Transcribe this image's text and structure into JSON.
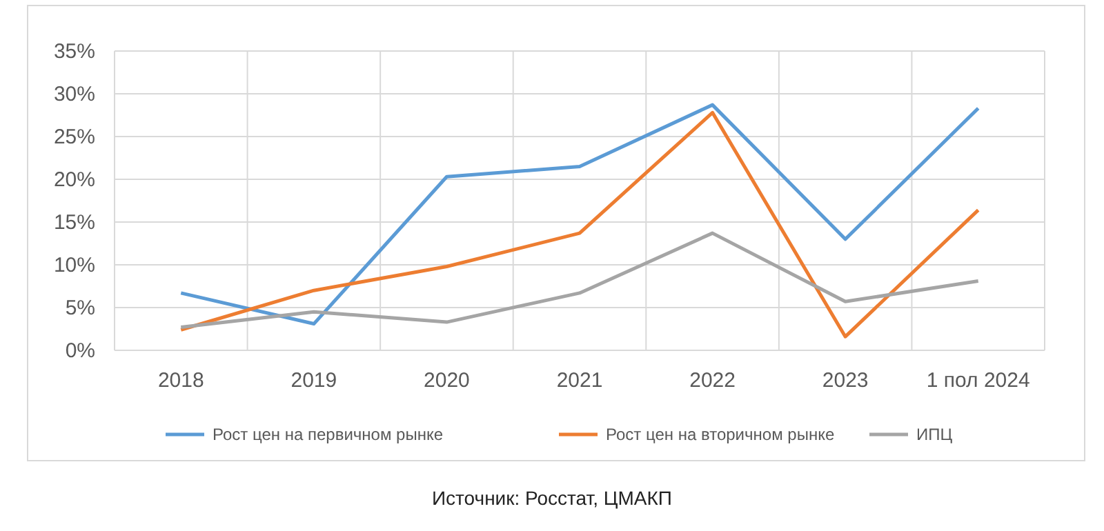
{
  "chart_data": {
    "type": "line",
    "categories": [
      "2018",
      "2019",
      "2020",
      "2021",
      "2022",
      "2023",
      "1 пол 2024"
    ],
    "series": [
      {
        "name": "Рост цен на первичном рынке",
        "color": "#5b9bd5",
        "values": [
          6.7,
          3.1,
          20.3,
          21.5,
          28.7,
          13.0,
          28.3
        ]
      },
      {
        "name": "Рост цен на вторичном рынке",
        "color": "#ed7d31",
        "values": [
          2.4,
          7.0,
          9.8,
          13.7,
          27.8,
          1.6,
          16.4
        ]
      },
      {
        "name": "ИПЦ",
        "color": "#a5a5a5",
        "values": [
          2.7,
          4.5,
          3.3,
          6.7,
          13.7,
          5.7,
          8.1
        ]
      }
    ],
    "ylim": [
      0,
      35
    ],
    "yticks": [
      {
        "value": 0,
        "label": "0%"
      },
      {
        "value": 5,
        "label": "5%"
      },
      {
        "value": 10,
        "label": "10%"
      },
      {
        "value": 15,
        "label": "15%"
      },
      {
        "value": 20,
        "label": "20%"
      },
      {
        "value": 25,
        "label": "25%"
      },
      {
        "value": 30,
        "label": "30%"
      },
      {
        "value": 35,
        "label": "35%"
      }
    ],
    "grid": true,
    "legend": "bottom",
    "marker": "none",
    "line_style": "solid",
    "annotations": [
      "Источник: Росстат, ЦМАКП"
    ]
  }
}
